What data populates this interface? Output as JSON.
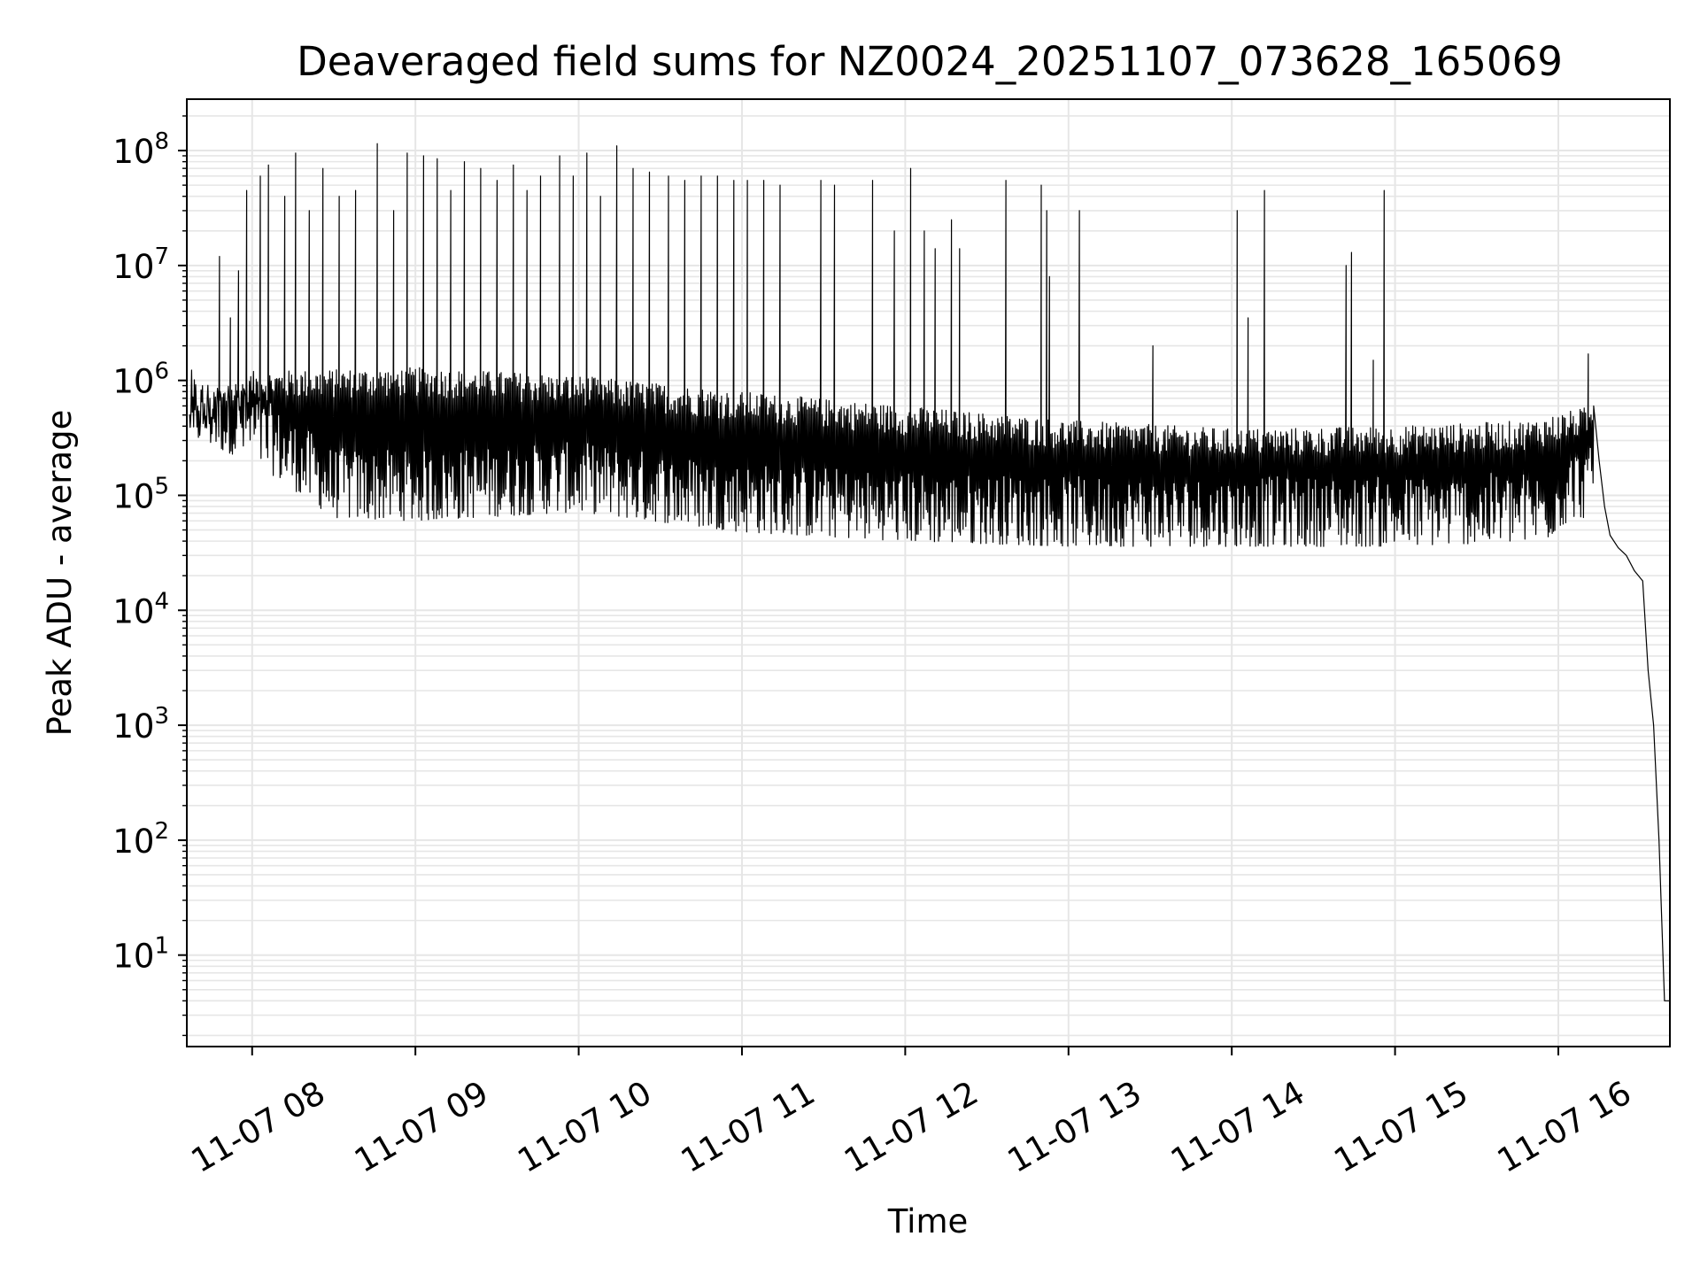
{
  "chart_data": {
    "type": "line",
    "title": "Deaveraged field sums for NZ0024_20251107_073628_165069",
    "xlabel": "Time",
    "ylabel": "Peak ADU - average",
    "xscale": "time",
    "yscale": "log",
    "xlim": [
      "2025-11-07 07:36",
      "2025-11-07 16:41"
    ],
    "ylim": [
      1.6,
      280000000
    ],
    "grid": true,
    "legend": "none",
    "line_color": "#000000",
    "grid_color": "#e6e6e6",
    "x_ticks": [
      {
        "time": "2025-11-07 08:00",
        "label": "11-07 08"
      },
      {
        "time": "2025-11-07 09:00",
        "label": "11-07 09"
      },
      {
        "time": "2025-11-07 10:00",
        "label": "11-07 10"
      },
      {
        "time": "2025-11-07 11:00",
        "label": "11-07 11"
      },
      {
        "time": "2025-11-07 12:00",
        "label": "11-07 12"
      },
      {
        "time": "2025-11-07 13:00",
        "label": "11-07 13"
      },
      {
        "time": "2025-11-07 14:00",
        "label": "11-07 14"
      },
      {
        "time": "2025-11-07 15:00",
        "label": "11-07 15"
      },
      {
        "time": "2025-11-07 16:00",
        "label": "11-07 16"
      }
    ],
    "y_ticks": [
      {
        "value": 10,
        "label_base": "10",
        "label_exp": "1"
      },
      {
        "value": 100,
        "label_base": "10",
        "label_exp": "2"
      },
      {
        "value": 1000,
        "label_base": "10",
        "label_exp": "3"
      },
      {
        "value": 10000,
        "label_base": "10",
        "label_exp": "4"
      },
      {
        "value": 100000,
        "label_base": "10",
        "label_exp": "5"
      },
      {
        "value": 1000000,
        "label_base": "10",
        "label_exp": "6"
      },
      {
        "value": 10000000,
        "label_base": "10",
        "label_exp": "7"
      },
      {
        "value": 100000000,
        "label_base": "10",
        "label_exp": "8"
      }
    ],
    "series": [
      {
        "baseline_upper": [
          [
            "2025-11-07 07:37",
            600000
          ],
          [
            "2025-11-07 07:50",
            900000
          ],
          [
            "2025-11-07 08:00",
            1200000
          ],
          [
            "2025-11-07 09:00",
            1300000
          ],
          [
            "2025-11-07 10:00",
            1100000
          ],
          [
            "2025-11-07 11:00",
            800000
          ],
          [
            "2025-11-07 12:00",
            600000
          ],
          [
            "2025-11-07 13:00",
            450000
          ],
          [
            "2025-11-07 14:00",
            380000
          ],
          [
            "2025-11-07 15:00",
            400000
          ],
          [
            "2025-11-07 15:50",
            450000
          ],
          [
            "2025-11-07 16:12",
            600000
          ]
        ],
        "baseline_lower": [
          [
            "2025-11-07 07:37",
            380000
          ],
          [
            "2025-11-07 08:00",
            250000
          ],
          [
            "2025-11-07 08:30",
            80000
          ],
          [
            "2025-11-07 09:00",
            75000
          ],
          [
            "2025-11-07 10:00",
            90000
          ],
          [
            "2025-11-07 11:00",
            60000
          ],
          [
            "2025-11-07 12:00",
            50000
          ],
          [
            "2025-11-07 13:00",
            45000
          ],
          [
            "2025-11-07 14:00",
            45000
          ],
          [
            "2025-11-07 15:00",
            45000
          ],
          [
            "2025-11-07 15:55",
            50000
          ],
          [
            "2025-11-07 16:05",
            80000
          ]
        ],
        "peaks": [
          [
            "2025-11-07 07:48",
            12000000
          ],
          [
            "2025-11-07 07:52",
            3500000
          ],
          [
            "2025-11-07 07:55",
            9000000
          ],
          [
            "2025-11-07 07:58",
            45000000
          ],
          [
            "2025-11-07 08:03",
            60000000
          ],
          [
            "2025-11-07 08:06",
            75000000
          ],
          [
            "2025-11-07 08:12",
            40000000
          ],
          [
            "2025-11-07 08:16",
            95000000
          ],
          [
            "2025-11-07 08:21",
            30000000
          ],
          [
            "2025-11-07 08:26",
            70000000
          ],
          [
            "2025-11-07 08:32",
            40000000
          ],
          [
            "2025-11-07 08:38",
            45000000
          ],
          [
            "2025-11-07 08:46",
            115000000
          ],
          [
            "2025-11-07 08:52",
            30000000
          ],
          [
            "2025-11-07 08:57",
            95000000
          ],
          [
            "2025-11-07 09:03",
            90000000
          ],
          [
            "2025-11-07 09:08",
            85000000
          ],
          [
            "2025-11-07 09:13",
            45000000
          ],
          [
            "2025-11-07 09:18",
            80000000
          ],
          [
            "2025-11-07 09:24",
            70000000
          ],
          [
            "2025-11-07 09:30",
            55000000
          ],
          [
            "2025-11-07 09:36",
            75000000
          ],
          [
            "2025-11-07 09:41",
            45000000
          ],
          [
            "2025-11-07 09:46",
            60000000
          ],
          [
            "2025-11-07 09:53",
            90000000
          ],
          [
            "2025-11-07 09:58",
            60000000
          ],
          [
            "2025-11-07 10:03",
            95000000
          ],
          [
            "2025-11-07 10:08",
            40000000
          ],
          [
            "2025-11-07 10:14",
            110000000
          ],
          [
            "2025-11-07 10:20",
            70000000
          ],
          [
            "2025-11-07 10:26",
            65000000
          ],
          [
            "2025-11-07 10:33",
            60000000
          ],
          [
            "2025-11-07 10:39",
            55000000
          ],
          [
            "2025-11-07 10:45",
            60000000
          ],
          [
            "2025-11-07 10:51",
            60000000
          ],
          [
            "2025-11-07 10:57",
            55000000
          ],
          [
            "2025-11-07 11:02",
            55000000
          ],
          [
            "2025-11-07 11:08",
            55000000
          ],
          [
            "2025-11-07 11:14",
            50000000
          ],
          [
            "2025-11-07 11:29",
            55000000
          ],
          [
            "2025-11-07 11:34",
            50000000
          ],
          [
            "2025-11-07 11:48",
            55000000
          ],
          [
            "2025-11-07 11:56",
            20000000
          ],
          [
            "2025-11-07 12:02",
            70000000
          ],
          [
            "2025-11-07 12:07",
            20000000
          ],
          [
            "2025-11-07 12:11",
            14000000
          ],
          [
            "2025-11-07 12:17",
            25000000
          ],
          [
            "2025-11-07 12:20",
            14000000
          ],
          [
            "2025-11-07 12:37",
            55000000
          ],
          [
            "2025-11-07 12:50",
            50000000
          ],
          [
            "2025-11-07 12:52",
            30000000
          ],
          [
            "2025-11-07 12:53",
            8000000
          ],
          [
            "2025-11-07 13:04",
            30000000
          ],
          [
            "2025-11-07 13:31",
            2000000
          ],
          [
            "2025-11-07 14:02",
            30000000
          ],
          [
            "2025-11-07 14:06",
            3500000
          ],
          [
            "2025-11-07 14:12",
            45000000
          ],
          [
            "2025-11-07 14:42",
            10000000
          ],
          [
            "2025-11-07 14:44",
            13000000
          ],
          [
            "2025-11-07 14:52",
            1500000
          ],
          [
            "2025-11-07 14:56",
            45000000
          ],
          [
            "2025-11-07 16:11",
            1700000
          ]
        ],
        "tail": [
          [
            "2025-11-07 16:13",
            600000
          ],
          [
            "2025-11-07 16:15",
            200000
          ],
          [
            "2025-11-07 16:17",
            80000
          ],
          [
            "2025-11-07 16:19",
            45000
          ],
          [
            "2025-11-07 16:22",
            35000
          ],
          [
            "2025-11-07 16:25",
            30000
          ],
          [
            "2025-11-07 16:28",
            22000
          ],
          [
            "2025-11-07 16:31",
            18000
          ],
          [
            "2025-11-07 16:33",
            3000
          ],
          [
            "2025-11-07 16:35",
            1000
          ],
          [
            "2025-11-07 16:37",
            100
          ],
          [
            "2025-11-07 16:39",
            4
          ],
          [
            "2025-11-07 16:41",
            4
          ]
        ]
      }
    ]
  }
}
